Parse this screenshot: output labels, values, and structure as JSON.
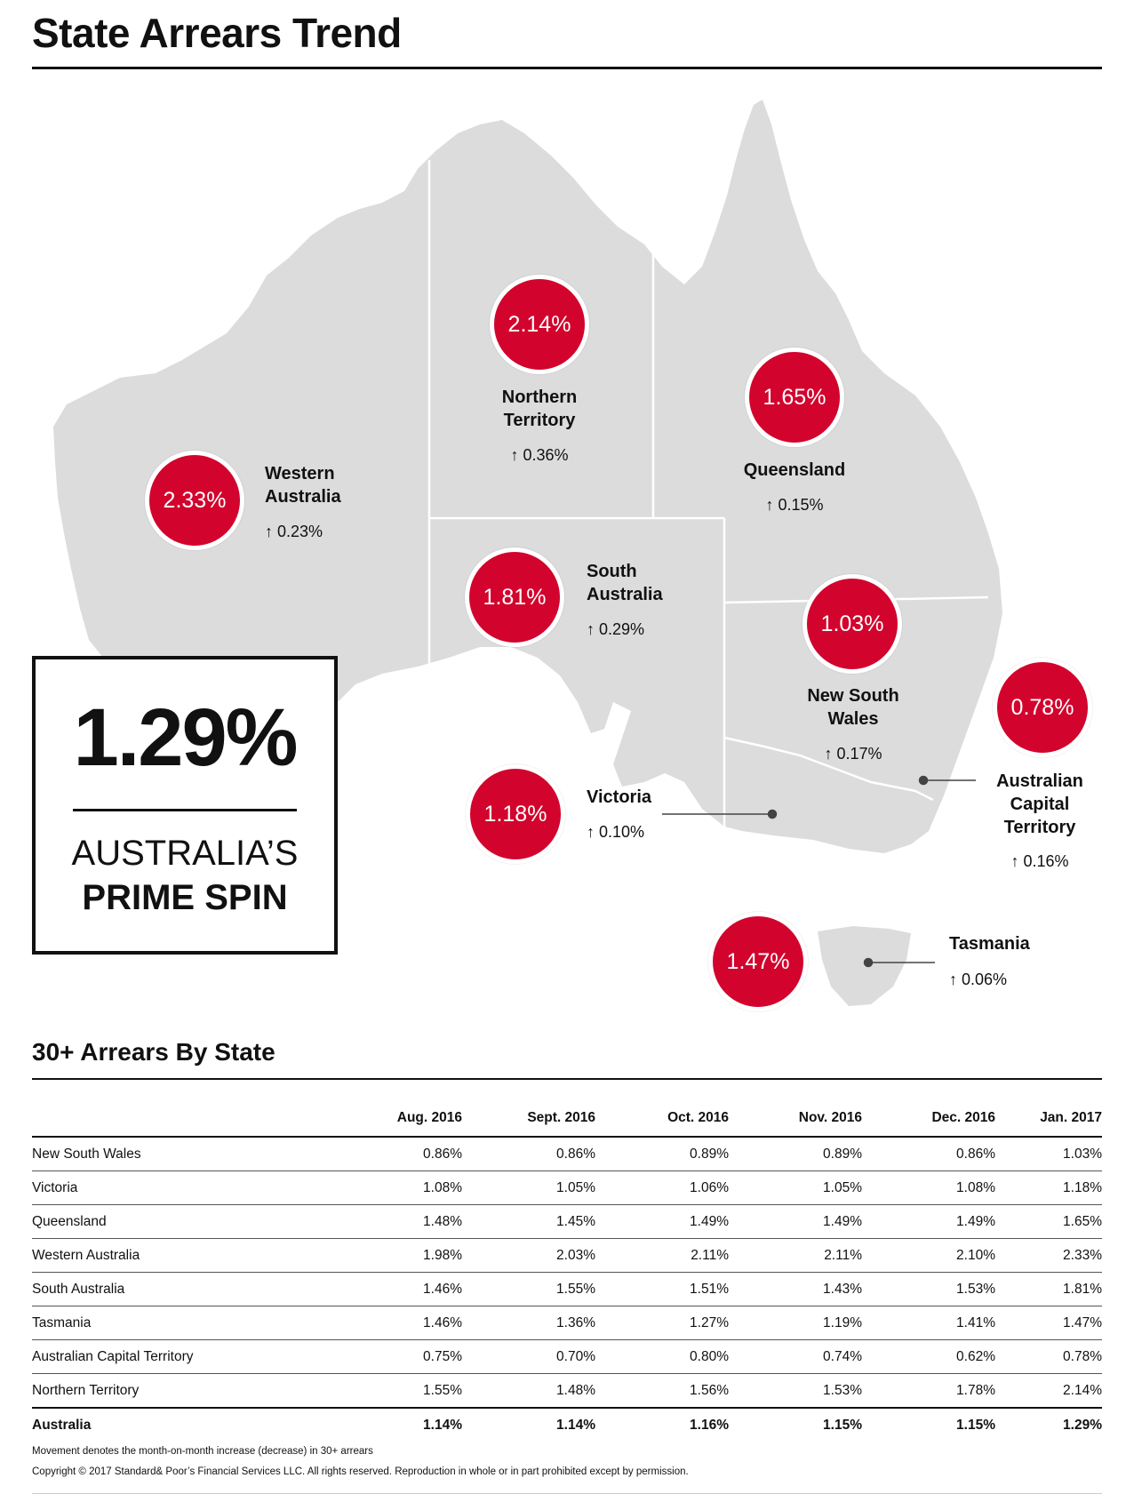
{
  "title": "State Arrears Trend",
  "prime": {
    "value": "1.29%",
    "line1": "AUSTRALIA’S",
    "line2": "PRIME SPIN"
  },
  "states": {
    "nt": {
      "name_l1": "Northern",
      "name_l2": "Territory",
      "value": "2.14%",
      "movement": "↑ 0.36%"
    },
    "qld": {
      "name_l1": "Queensland",
      "value": "1.65%",
      "movement": "↑ 0.15%"
    },
    "wa": {
      "name_l1": "Western",
      "name_l2": "Australia",
      "value": "2.33%",
      "movement": "↑ 0.23%"
    },
    "sa": {
      "name_l1": "South",
      "name_l2": "Australia",
      "value": "1.81%",
      "movement": "↑ 0.29%"
    },
    "nsw": {
      "name_l1": "New South",
      "name_l2": "Wales",
      "value": "1.03%",
      "movement": "↑ 0.17%"
    },
    "act": {
      "name_l1": "Australian",
      "name_l2": "Capital",
      "name_l3": "Territory",
      "value": "0.78%",
      "movement": "↑ 0.16%"
    },
    "vic": {
      "name_l1": "Victoria",
      "value": "1.18%",
      "movement": "↑ 0.10%"
    },
    "tas": {
      "name_l1": "Tasmania",
      "value": "1.47%",
      "movement": "↑ 0.06%"
    }
  },
  "colors": {
    "bubble": "#d2042d",
    "land": "#dcdcdc",
    "border": "#ffffff",
    "text": "#111111"
  },
  "table": {
    "title": "30+ Arrears By State",
    "headers": [
      "",
      "Aug. 2016",
      "Sept. 2016",
      "Oct. 2016",
      "Nov. 2016",
      "Dec. 2016",
      "Jan. 2017"
    ],
    "rows": [
      [
        "New South Wales",
        "0.86%",
        "0.86%",
        "0.89%",
        "0.89%",
        "0.86%",
        "1.03%"
      ],
      [
        "Victoria",
        "1.08%",
        "1.05%",
        "1.06%",
        "1.05%",
        "1.08%",
        "1.18%"
      ],
      [
        "Queensland",
        "1.48%",
        "1.45%",
        "1.49%",
        "1.49%",
        "1.49%",
        "1.65%"
      ],
      [
        "Western Australia",
        "1.98%",
        "2.03%",
        "2.11%",
        "2.11%",
        "2.10%",
        "2.33%"
      ],
      [
        "South Australia",
        "1.46%",
        "1.55%",
        "1.51%",
        "1.43%",
        "1.53%",
        "1.81%"
      ],
      [
        "Tasmania",
        "1.46%",
        "1.36%",
        "1.27%",
        "1.19%",
        "1.41%",
        "1.47%"
      ],
      [
        "Australian Capital Territory",
        "0.75%",
        "0.70%",
        "0.80%",
        "0.74%",
        "0.62%",
        "0.78%"
      ],
      [
        "Northern Territory",
        "1.55%",
        "1.48%",
        "1.56%",
        "1.53%",
        "1.78%",
        "2.14%"
      ]
    ],
    "total": [
      "Australia",
      "1.14%",
      "1.14%",
      "1.16%",
      "1.15%",
      "1.15%",
      "1.29%"
    ]
  },
  "footnote": "Movement denotes the month-on-month increase (decrease) in 30+ arrears",
  "copyright": "Copyright © 2017 Standard& Poor’s Financial Services LLC. All rights reserved. Reproduction in whole or in part prohibited except by permission."
}
